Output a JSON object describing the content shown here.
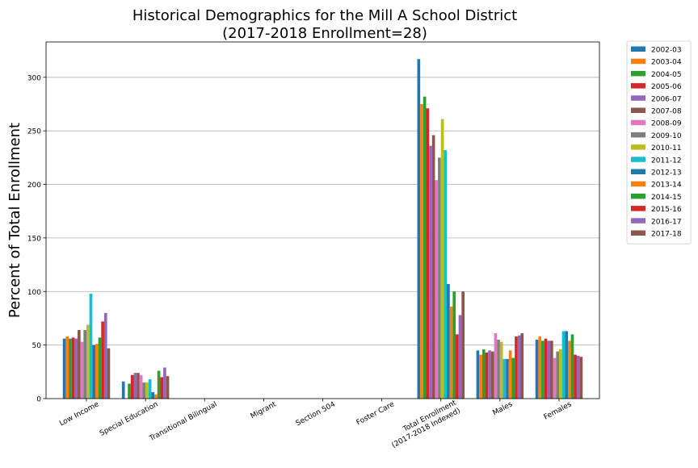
{
  "chart_data": {
    "type": "bar",
    "title": "Historical Demographics for the Mill A School District",
    "subtitle": "(2017-2018 Enrollment=28)",
    "xlabel": "",
    "ylabel": "Percent of Total Enrollment",
    "ylim": [
      0,
      333
    ],
    "yticks": [
      0,
      50,
      100,
      150,
      200,
      250,
      300
    ],
    "grid": "y",
    "legend_position": "outside-top-right",
    "categories": [
      "Low Income",
      "Special Education",
      "Transitional Bilingual",
      "Migrant",
      "Section 504",
      "Foster Care",
      "Total Enrollment\n(2017-2018 Indexed)",
      "Males",
      "Females"
    ],
    "series": [
      {
        "name": "2002-03",
        "color": "#1f77b4",
        "values": [
          56,
          16,
          0,
          0,
          0,
          0,
          317,
          45,
          55
        ]
      },
      {
        "name": "2003-04",
        "color": "#ff7f0e",
        "values": [
          58,
          0,
          0,
          0,
          0,
          0,
          275,
          41,
          58
        ]
      },
      {
        "name": "2004-05",
        "color": "#2ca02c",
        "values": [
          56,
          14,
          0,
          0,
          0,
          0,
          282,
          46,
          54
        ]
      },
      {
        "name": "2005-06",
        "color": "#d62728",
        "values": [
          57,
          22,
          0,
          0,
          0,
          0,
          271,
          43,
          56
        ]
      },
      {
        "name": "2006-07",
        "color": "#9467bd",
        "values": [
          56,
          24,
          0,
          0,
          0,
          0,
          236,
          45,
          54
        ]
      },
      {
        "name": "2007-08",
        "color": "#8c564b",
        "values": [
          64,
          24,
          0,
          0,
          0,
          0,
          246,
          44,
          54
        ]
      },
      {
        "name": "2008-09",
        "color": "#e377c2",
        "values": [
          53,
          22,
          0,
          0,
          0,
          0,
          204,
          61,
          38
        ]
      },
      {
        "name": "2009-10",
        "color": "#7f7f7f",
        "values": [
          64,
          15,
          0,
          0,
          0,
          0,
          225,
          55,
          44
        ]
      },
      {
        "name": "2010-11",
        "color": "#bcbd22",
        "values": [
          69,
          15,
          0,
          0,
          0,
          0,
          261,
          53,
          46
        ]
      },
      {
        "name": "2011-12",
        "color": "#17becf",
        "values": [
          98,
          18,
          0,
          0,
          0,
          0,
          232,
          37,
          63
        ]
      },
      {
        "name": "2012-13",
        "color": "#1f77b4",
        "values": [
          50,
          6,
          0,
          0,
          0,
          0,
          107,
          37,
          63
        ]
      },
      {
        "name": "2013-14",
        "color": "#ff7f0e",
        "values": [
          51,
          4,
          0,
          0,
          0,
          0,
          86,
          45,
          54
        ]
      },
      {
        "name": "2014-15",
        "color": "#2ca02c",
        "values": [
          57,
          26,
          0,
          0,
          0,
          0,
          100,
          38,
          60
        ]
      },
      {
        "name": "2015-16",
        "color": "#d62728",
        "values": [
          72,
          20,
          0,
          0,
          0,
          0,
          60,
          58,
          41
        ]
      },
      {
        "name": "2016-17",
        "color": "#9467bd",
        "values": [
          80,
          29,
          0,
          0,
          0,
          0,
          78,
          59,
          40
        ]
      },
      {
        "name": "2017-18",
        "color": "#8c564b",
        "values": [
          47,
          21,
          0,
          0,
          0,
          0,
          100,
          61,
          39
        ]
      }
    ]
  }
}
